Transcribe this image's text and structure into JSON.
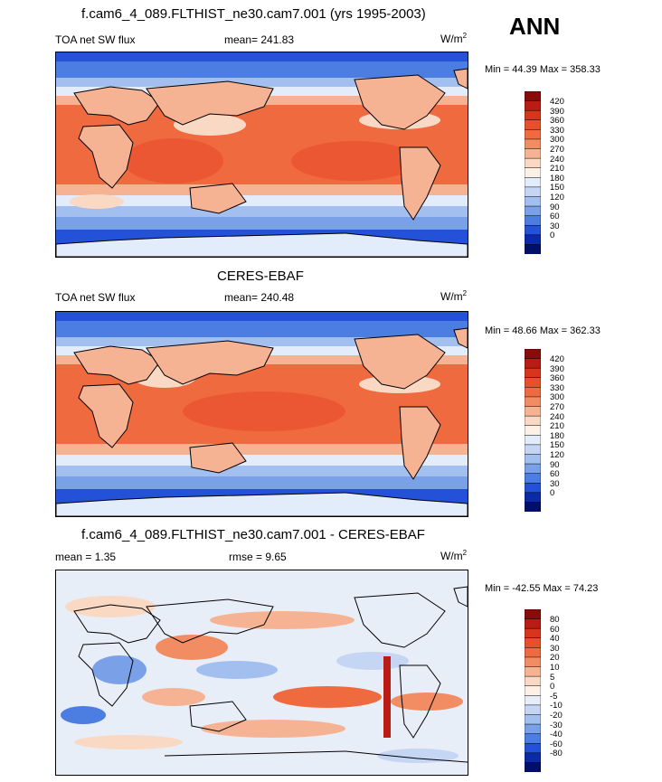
{
  "season": "ANN",
  "panels": [
    {
      "title": "f.cam6_4_089.FLTHIST_ne30.cam7.001 (yrs 1995-2003)",
      "left_label": "TOA net SW flux",
      "center_label": "mean= 241.83",
      "units": "W/m",
      "units_sup": "2",
      "minmax": "Min =  44.39 Max = 358.33",
      "colorbar_labels": [
        "420",
        "390",
        "360",
        "330",
        "300",
        "270",
        "240",
        "210",
        "180",
        "150",
        "120",
        "90",
        "60",
        "30",
        "0"
      ]
    },
    {
      "title": "CERES-EBAF",
      "left_label": "TOA net SW flux",
      "center_label": "mean= 240.48",
      "units": "W/m",
      "units_sup": "2",
      "minmax": "Min =  48.66 Max = 362.33",
      "colorbar_labels": [
        "420",
        "390",
        "360",
        "330",
        "300",
        "270",
        "240",
        "210",
        "180",
        "150",
        "120",
        "90",
        "60",
        "30",
        "0"
      ]
    },
    {
      "title": "f.cam6_4_089.FLTHIST_ne30.cam7.001 - CERES-EBAF",
      "left_label": "mean =   1.35",
      "center_label": "rmse =   9.65",
      "units": "W/m",
      "units_sup": "2",
      "minmax": "Min = -42.55 Max =  74.23",
      "colorbar_labels": [
        "80",
        "60",
        "40",
        "30",
        "20",
        "10",
        "5",
        "0",
        "-5",
        "-10",
        "-20",
        "-30",
        "-40",
        "-60",
        "-80"
      ]
    }
  ],
  "colors": {
    "abs_scale": [
      "#8b0a0a",
      "#b81c14",
      "#d8351c",
      "#e8502c",
      "#f06a40",
      "#f28c62",
      "#f6b394",
      "#fad9c4",
      "#fdf0e6",
      "#e3ecfa",
      "#c4d6f4",
      "#a3bff0",
      "#7aa1e8",
      "#4c7de0",
      "#2352d8",
      "#0a2aa8",
      "#00106a"
    ],
    "diff_scale": [
      "#8b0a0a",
      "#b81c14",
      "#d8351c",
      "#e8502c",
      "#f06a40",
      "#f28c62",
      "#f6b394",
      "#fad9c4",
      "#fdf0e6",
      "#e8eef8",
      "#c4d6f4",
      "#a3bff0",
      "#7aa1e8",
      "#4c7de0",
      "#2352d8",
      "#0a2aa8",
      "#00106a"
    ]
  }
}
